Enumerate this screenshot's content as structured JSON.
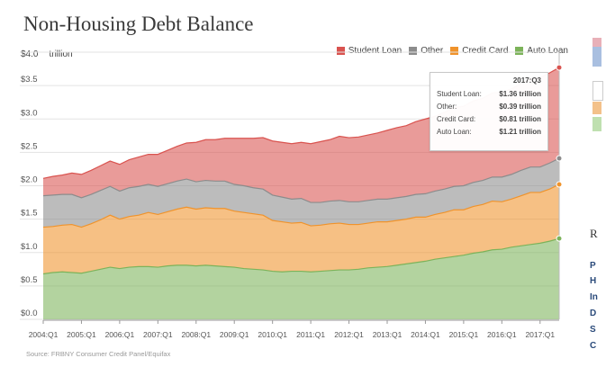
{
  "title": "Non-Housing Debt Balance",
  "unit_prefix": "$4.0",
  "unit_label": "trillion",
  "source": "Source: FRBNY Consumer Credit Panel/Equifax",
  "colors": {
    "student_loan": "#d9534f",
    "other": "#8c8c8c",
    "credit_card": "#f0932b",
    "auto_loan": "#7cb35a"
  },
  "tooltip": {
    "title": "2017:Q3",
    "rows": [
      {
        "label": "Student Loan:",
        "value": "$1.36 trillion"
      },
      {
        "label": "Other:",
        "value": "$0.39 trillion"
      },
      {
        "label": "Credit Card:",
        "value": "$0.81 trillion"
      },
      {
        "label": "Auto Loan:",
        "value": "$1.21 trillion"
      }
    ]
  },
  "sidebar": {
    "heading": "R",
    "letters": [
      "P",
      "H",
      "In",
      "D",
      "S",
      "C"
    ]
  },
  "chart_data": {
    "type": "area",
    "stacked": true,
    "title": "Non-Housing Debt Balance",
    "ylabel": "trillion",
    "ylim": [
      0,
      4.0
    ],
    "yticks": [
      "$0.0",
      "$0.5",
      "$1.0",
      "$1.5",
      "$2.0",
      "$2.5",
      "$3.0",
      "$3.5",
      "$4.0"
    ],
    "xtick_labels": [
      "2004:Q1",
      "2005:Q1",
      "2006:Q1",
      "2007:Q1",
      "2008:Q1",
      "2009:Q1",
      "2010:Q1",
      "2011:Q1",
      "2012:Q1",
      "2013:Q1",
      "2014:Q1",
      "2015:Q1",
      "2016:Q1",
      "2017:Q1"
    ],
    "legend_position": "top-right",
    "series_order": [
      "Auto Loan",
      "Credit Card",
      "Other",
      "Student Loan"
    ],
    "legend": [
      "Student Loan",
      "Other",
      "Credit Card",
      "Auto Loan"
    ],
    "x": [
      "2004:Q1",
      "2004:Q2",
      "2004:Q3",
      "2004:Q4",
      "2005:Q1",
      "2005:Q2",
      "2005:Q3",
      "2005:Q4",
      "2006:Q1",
      "2006:Q2",
      "2006:Q3",
      "2006:Q4",
      "2007:Q1",
      "2007:Q2",
      "2007:Q3",
      "2007:Q4",
      "2008:Q1",
      "2008:Q2",
      "2008:Q3",
      "2008:Q4",
      "2009:Q1",
      "2009:Q2",
      "2009:Q3",
      "2009:Q4",
      "2010:Q1",
      "2010:Q2",
      "2010:Q3",
      "2010:Q4",
      "2011:Q1",
      "2011:Q2",
      "2011:Q3",
      "2011:Q4",
      "2012:Q1",
      "2012:Q2",
      "2012:Q3",
      "2012:Q4",
      "2013:Q1",
      "2013:Q2",
      "2013:Q3",
      "2013:Q4",
      "2014:Q1",
      "2014:Q2",
      "2014:Q3",
      "2014:Q4",
      "2015:Q1",
      "2015:Q2",
      "2015:Q3",
      "2015:Q4",
      "2016:Q1",
      "2016:Q2",
      "2016:Q3",
      "2016:Q4",
      "2017:Q1",
      "2017:Q2",
      "2017:Q3"
    ],
    "series": [
      {
        "name": "Auto Loan",
        "values": [
          0.68,
          0.7,
          0.71,
          0.7,
          0.69,
          0.72,
          0.75,
          0.78,
          0.76,
          0.78,
          0.79,
          0.79,
          0.78,
          0.8,
          0.81,
          0.81,
          0.8,
          0.81,
          0.8,
          0.79,
          0.78,
          0.76,
          0.75,
          0.74,
          0.72,
          0.71,
          0.72,
          0.72,
          0.71,
          0.72,
          0.73,
          0.74,
          0.74,
          0.75,
          0.77,
          0.78,
          0.79,
          0.81,
          0.83,
          0.85,
          0.87,
          0.9,
          0.92,
          0.94,
          0.96,
          0.99,
          1.01,
          1.04,
          1.05,
          1.08,
          1.1,
          1.12,
          1.14,
          1.17,
          1.21
        ]
      },
      {
        "name": "Credit Card",
        "values": [
          0.7,
          0.69,
          0.7,
          0.72,
          0.69,
          0.71,
          0.74,
          0.78,
          0.74,
          0.76,
          0.77,
          0.81,
          0.79,
          0.81,
          0.84,
          0.87,
          0.85,
          0.86,
          0.86,
          0.87,
          0.84,
          0.84,
          0.83,
          0.82,
          0.76,
          0.75,
          0.72,
          0.73,
          0.69,
          0.69,
          0.7,
          0.7,
          0.68,
          0.67,
          0.67,
          0.68,
          0.67,
          0.67,
          0.67,
          0.68,
          0.66,
          0.67,
          0.68,
          0.7,
          0.68,
          0.7,
          0.71,
          0.73,
          0.71,
          0.72,
          0.75,
          0.78,
          0.76,
          0.78,
          0.81
        ]
      },
      {
        "name": "Other",
        "values": [
          0.47,
          0.47,
          0.46,
          0.45,
          0.44,
          0.44,
          0.44,
          0.43,
          0.42,
          0.43,
          0.43,
          0.42,
          0.42,
          0.42,
          0.42,
          0.42,
          0.41,
          0.41,
          0.41,
          0.41,
          0.4,
          0.4,
          0.39,
          0.39,
          0.38,
          0.37,
          0.36,
          0.36,
          0.35,
          0.34,
          0.34,
          0.34,
          0.34,
          0.34,
          0.34,
          0.34,
          0.34,
          0.34,
          0.34,
          0.34,
          0.35,
          0.35,
          0.35,
          0.35,
          0.36,
          0.36,
          0.36,
          0.36,
          0.37,
          0.37,
          0.38,
          0.38,
          0.38,
          0.39,
          0.39
        ]
      },
      {
        "name": "Student Loan",
        "values": [
          0.26,
          0.28,
          0.29,
          0.32,
          0.35,
          0.36,
          0.37,
          0.38,
          0.4,
          0.42,
          0.44,
          0.45,
          0.48,
          0.5,
          0.52,
          0.54,
          0.59,
          0.61,
          0.62,
          0.64,
          0.69,
          0.71,
          0.74,
          0.77,
          0.81,
          0.82,
          0.83,
          0.84,
          0.88,
          0.91,
          0.92,
          0.96,
          0.96,
          0.97,
          0.98,
          0.99,
          1.03,
          1.05,
          1.06,
          1.09,
          1.12,
          1.12,
          1.15,
          1.18,
          1.19,
          1.22,
          1.23,
          1.26,
          1.27,
          1.28,
          1.3,
          1.32,
          1.34,
          1.35,
          1.36
        ]
      }
    ]
  }
}
